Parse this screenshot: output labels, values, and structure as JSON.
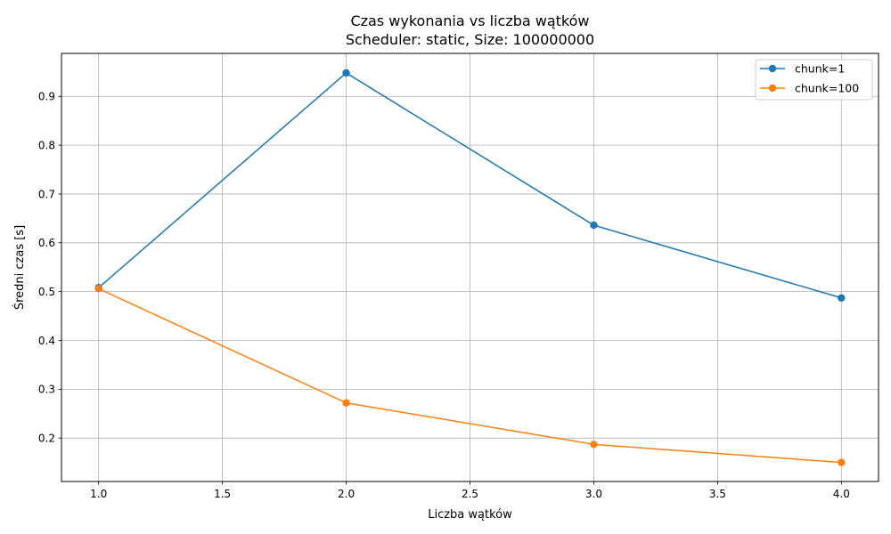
{
  "chart_data": {
    "type": "line",
    "title": "Czas wykonania vs liczba wątków",
    "subtitle": "Scheduler: static, Size: 100000000",
    "xlabel": "Liczba wątków",
    "ylabel": "Średni czas [s]",
    "x": [
      1.0,
      2.0,
      3.0,
      4.0
    ],
    "xlim": [
      0.85,
      4.15
    ],
    "ylim": [
      0.111,
      0.988
    ],
    "xticks": [
      1.0,
      1.5,
      2.0,
      2.5,
      3.0,
      3.5,
      4.0
    ],
    "xtick_labels": [
      "1.0",
      "1.5",
      "2.0",
      "2.5",
      "3.0",
      "3.5",
      "4.0"
    ],
    "yticks": [
      0.2,
      0.3,
      0.4,
      0.5,
      0.6,
      0.7,
      0.8,
      0.9
    ],
    "ytick_labels": [
      "0.2",
      "0.3",
      "0.4",
      "0.5",
      "0.6",
      "0.7",
      "0.8",
      "0.9"
    ],
    "grid": true,
    "legend_position": "upper right",
    "series": [
      {
        "name": "chunk=1",
        "color": "#1f77b4",
        "marker": "circle",
        "values": [
          0.508,
          0.948,
          0.636,
          0.487
        ]
      },
      {
        "name": "chunk=100",
        "color": "#ff7f0e",
        "marker": "circle",
        "values": [
          0.506,
          0.272,
          0.187,
          0.15
        ]
      }
    ]
  }
}
